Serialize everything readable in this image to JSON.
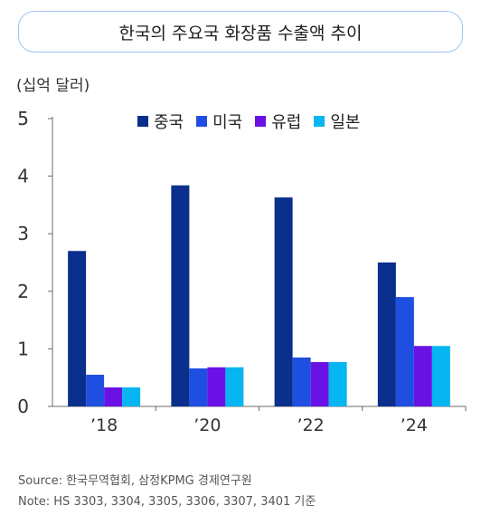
{
  "title": "한국의 주요국 화장품 수출액 추이",
  "unit_label": "(십억 달러)",
  "source": "Source: 한국무역협회, 삼정KPMG 경제연구원",
  "note": "Note: HS 3303, 3304, 3305, 3306, 3307, 3401 기준",
  "chart_data": {
    "type": "bar",
    "title": "한국의 주요국 화장품 수출액 추이",
    "ylabel": "(십억 달러)",
    "xlabel": "",
    "categories": [
      "’18",
      "’20",
      "’22",
      "’24"
    ],
    "ylim": [
      0,
      5
    ],
    "yticks": [
      0,
      1,
      2,
      3,
      4,
      5
    ],
    "grid": false,
    "legend_position": "top",
    "series": [
      {
        "name": "중국",
        "color": "#0a2f8c",
        "values": [
          2.7,
          3.84,
          3.63,
          2.5
        ]
      },
      {
        "name": "미국",
        "color": "#1f4fe0",
        "values": [
          0.55,
          0.66,
          0.85,
          1.9
        ]
      },
      {
        "name": "유럽",
        "color": "#6a12e6",
        "values": [
          0.33,
          0.68,
          0.77,
          1.05
        ]
      },
      {
        "name": "일본",
        "color": "#06b6f0",
        "values": [
          0.33,
          0.68,
          0.77,
          1.05
        ]
      }
    ]
  }
}
